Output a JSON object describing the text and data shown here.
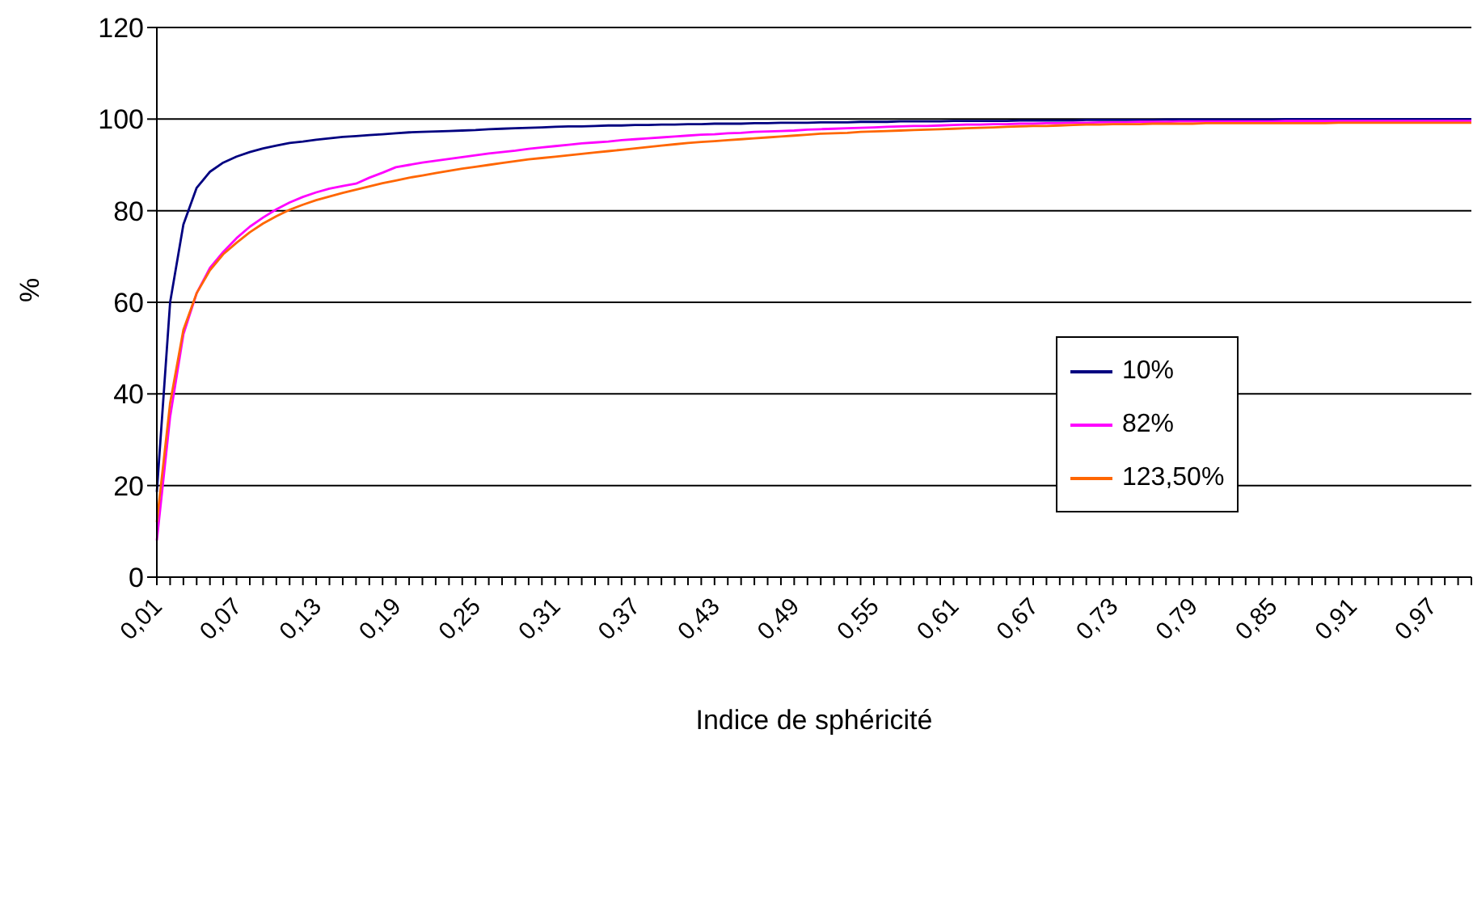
{
  "chart_data": {
    "type": "line",
    "xlabel": "Indice de sphéricité",
    "ylabel": "%",
    "categories": [
      "0,01",
      null,
      null,
      null,
      null,
      null,
      "0,07",
      null,
      null,
      null,
      null,
      null,
      "0,13",
      null,
      null,
      null,
      null,
      null,
      "0,19",
      null,
      null,
      null,
      null,
      null,
      "0,25",
      null,
      null,
      null,
      null,
      null,
      "0,31",
      null,
      null,
      null,
      null,
      null,
      "0,37",
      null,
      null,
      null,
      null,
      null,
      "0,43",
      null,
      null,
      null,
      null,
      null,
      "0,49",
      null,
      null,
      null,
      null,
      null,
      "0,55",
      null,
      null,
      null,
      null,
      null,
      "0,61",
      null,
      null,
      null,
      null,
      null,
      "0,67",
      null,
      null,
      null,
      null,
      null,
      "0,73",
      null,
      null,
      null,
      null,
      null,
      "0,79",
      null,
      null,
      null,
      null,
      null,
      "0,85",
      null,
      null,
      null,
      null,
      null,
      "0,91",
      null,
      null,
      null,
      null,
      null,
      "0,97",
      null,
      null,
      null
    ],
    "series": [
      {
        "name": "10%",
        "color": "#000080",
        "values": [
          18.6,
          60,
          77,
          85,
          88.5,
          90.5,
          91.8,
          92.8,
          93.6,
          94.2,
          94.8,
          95.1,
          95.5,
          95.8,
          96.1,
          96.3,
          96.5,
          96.7,
          96.9,
          97.1,
          97.2,
          97.3,
          97.4,
          97.5,
          97.6,
          97.8,
          97.9,
          98.0,
          98.1,
          98.2,
          98.3,
          98.4,
          98.4,
          98.5,
          98.6,
          98.6,
          98.7,
          98.7,
          98.8,
          98.8,
          98.9,
          98.9,
          99.0,
          99.0,
          99.0,
          99.1,
          99.1,
          99.2,
          99.2,
          99.2,
          99.3,
          99.3,
          99.3,
          99.4,
          99.4,
          99.4,
          99.5,
          99.5,
          99.5,
          99.5,
          99.6,
          99.6,
          99.6,
          99.6,
          99.6,
          99.7,
          99.7,
          99.7,
          99.7,
          99.7,
          99.8,
          99.8,
          99.8,
          99.8,
          99.8,
          99.8,
          99.9,
          99.9,
          99.9,
          99.9,
          99.9,
          99.9,
          99.9,
          99.9,
          99.9,
          100,
          100,
          100,
          100,
          100,
          100,
          100,
          100,
          100,
          100,
          100,
          100,
          100,
          100,
          100
        ]
      },
      {
        "name": "82%",
        "color": "#ff00ff",
        "values": [
          8,
          35,
          53,
          62,
          67.5,
          71,
          74,
          76.5,
          78.5,
          80.3,
          81.8,
          83,
          84,
          84.8,
          85.4,
          85.9,
          87.2,
          88.3,
          89.5,
          90,
          90.5,
          90.9,
          91.3,
          91.7,
          92.1,
          92.5,
          92.8,
          93.1,
          93.5,
          93.8,
          94.1,
          94.4,
          94.7,
          94.9,
          95.1,
          95.4,
          95.6,
          95.8,
          96.0,
          96.2,
          96.4,
          96.6,
          96.7,
          96.9,
          97.0,
          97.2,
          97.3,
          97.4,
          97.5,
          97.7,
          97.8,
          97.9,
          98.0,
          98.1,
          98.2,
          98.3,
          98.4,
          98.5,
          98.5,
          98.6,
          98.7,
          98.8,
          98.8,
          98.9,
          98.9,
          99.0,
          99.0,
          99.1,
          99.1,
          99.2,
          99.2,
          99.3,
          99.3,
          99.3,
          99.4,
          99.4,
          99.4,
          99.5,
          99.5,
          99.5,
          99.5,
          99.5,
          99.5,
          99.5,
          99.5,
          99.6,
          99.6,
          99.6,
          99.6,
          99.6,
          99.6,
          99.6,
          99.6,
          99.6,
          99.6,
          99.6,
          99.6,
          99.6,
          99.6,
          99.6
        ]
      },
      {
        "name": "123,50%",
        "color": "#ff6600",
        "values": [
          12,
          38,
          54,
          62,
          67,
          70.5,
          73,
          75.3,
          77.2,
          78.8,
          80.2,
          81.3,
          82.3,
          83.1,
          83.9,
          84.6,
          85.3,
          86,
          86.6,
          87.2,
          87.7,
          88.2,
          88.7,
          89.2,
          89.6,
          90.0,
          90.4,
          90.8,
          91.2,
          91.5,
          91.8,
          92.1,
          92.4,
          92.7,
          93.0,
          93.3,
          93.6,
          93.9,
          94.2,
          94.5,
          94.8,
          95.0,
          95.2,
          95.4,
          95.6,
          95.8,
          96.0,
          96.2,
          96.4,
          96.6,
          96.8,
          96.9,
          97.0,
          97.2,
          97.3,
          97.4,
          97.5,
          97.6,
          97.7,
          97.8,
          97.9,
          98.0,
          98.1,
          98.2,
          98.3,
          98.4,
          98.5,
          98.5,
          98.6,
          98.7,
          98.8,
          98.8,
          98.9,
          98.9,
          98.9,
          99.0,
          99.0,
          99.0,
          99.0,
          99.1,
          99.1,
          99.1,
          99.1,
          99.1,
          99.1,
          99.1,
          99.1,
          99.1,
          99.1,
          99.2,
          99.2,
          99.2,
          99.2,
          99.2,
          99.2,
          99.2,
          99.2,
          99.2,
          99.2,
          99.2
        ]
      }
    ],
    "ylim": [
      0,
      120
    ],
    "yticks": [
      0,
      20,
      40,
      60,
      80,
      100,
      120
    ],
    "grid": "y",
    "legend": "right",
    "marker": "none",
    "line_style": "solid"
  }
}
